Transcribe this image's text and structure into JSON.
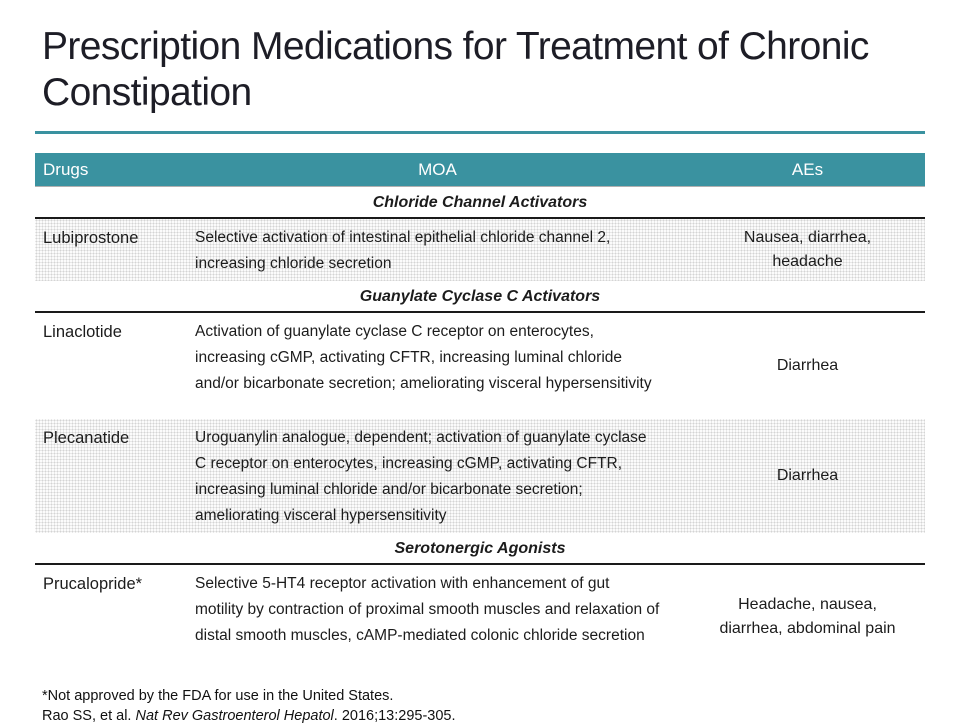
{
  "title": "Prescription Medications for Treatment of Chronic Constipation",
  "colors": {
    "accent_teal": "#3A92A0",
    "header_text": "#FFFFFF",
    "body_text": "#1C1C1C",
    "shaded_row": "#ECECEC"
  },
  "table": {
    "headers": {
      "drugs": "Drugs",
      "moa": "MOA",
      "aes": "AEs"
    },
    "sections": [
      {
        "label": "Chloride Channel Activators",
        "rows": [
          {
            "drug": "Lubiprostone",
            "moa": "Selective activation of intestinal epithelial chloride channel 2, increasing chloride secretion",
            "aes": "Nausea, diarrhea, headache"
          }
        ]
      },
      {
        "label": "Guanylate Cyclase C Activators",
        "rows": [
          {
            "drug": "Linaclotide",
            "moa": "Activation of guanylate cyclase C receptor on enterocytes, increasing cGMP, activating CFTR, increasing luminal chloride and/or bicarbonate secretion; ameliorating visceral hypersensitivity",
            "aes": "Diarrhea"
          },
          {
            "drug": "Plecanatide",
            "moa": "Uroguanylin analogue, dependent; activation of guanylate cyclase C receptor on enterocytes, increasing cGMP, activating CFTR, increasing luminal chloride and/or bicarbonate secretion; ameliorating visceral hypersensitivity",
            "aes": "Diarrhea"
          }
        ]
      },
      {
        "label": "Serotonergic Agonists",
        "rows": [
          {
            "drug": "Prucalopride*",
            "moa": "Selective 5-HT4 receptor activation with enhancement of gut motility by contraction of proximal smooth muscles and relaxation of distal smooth muscles, cAMP-mediated colonic chloride secretion",
            "aes": "Headache, nausea, diarrhea, abdominal pain"
          }
        ]
      }
    ]
  },
  "footnotes": {
    "asterisk_note": "*Not approved by the FDA for use in the United States.",
    "citation_prefix": "Rao SS, et al. ",
    "citation_journal": "Nat Rev Gastroenterol Hepatol",
    "citation_suffix": ". 2016;13:295-305."
  }
}
